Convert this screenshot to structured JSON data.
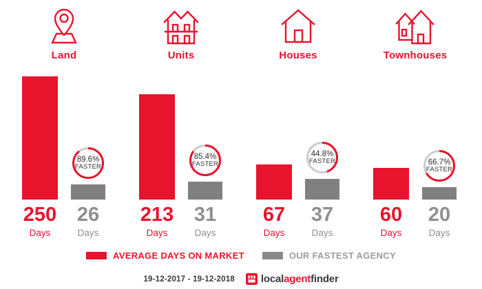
{
  "colors": {
    "accent_red": "#e8132d",
    "bar_gray": "#808080",
    "ring_gray": "#cccccc",
    "number_gray": "#8f8f8f",
    "legend_gray": "#9c9c9c",
    "footer_text": "#3a3a3a"
  },
  "chart_data": {
    "type": "bar",
    "categories": [
      "Land",
      "Units",
      "Houses",
      "Townhouses"
    ],
    "series": [
      {
        "name": "AVERAGE DAYS ON MARKET",
        "color": "#e8132d",
        "values": [
          250,
          213,
          67,
          60
        ]
      },
      {
        "name": "OUR FASTEST AGENCY",
        "color": "#808080",
        "values": [
          26,
          31,
          37,
          20
        ]
      }
    ],
    "badges_faster_pct": [
      89.6,
      85.4,
      44.8,
      66.7
    ],
    "value_unit": "Days",
    "badge_suffix": "FASTER",
    "legend_position": "bottom",
    "grid": false,
    "title": ""
  },
  "groups": [
    {
      "label": "Land",
      "icon": "map-pin-icon",
      "avg_days": "250",
      "fastest_days": "26",
      "faster_pct": 89.6,
      "badge_text": "89.6%"
    },
    {
      "label": "Units",
      "icon": "units-icon",
      "avg_days": "213",
      "fastest_days": "31",
      "faster_pct": 85.4,
      "badge_text": "85.4%"
    },
    {
      "label": "Houses",
      "icon": "house-icon",
      "avg_days": "67",
      "fastest_days": "37",
      "faster_pct": 44.8,
      "badge_text": "44.8%"
    },
    {
      "label": "Townhouses",
      "icon": "townhouses-icon",
      "avg_days": "60",
      "fastest_days": "20",
      "faster_pct": 66.7,
      "badge_text": "66.7%"
    }
  ],
  "days_label": "Days",
  "badge_suffix": "FASTER",
  "legend": {
    "items": [
      {
        "label": "AVERAGE DAYS ON MARKET",
        "color": "#e8132d"
      },
      {
        "label": "OUR FASTEST AGENCY",
        "color": "#808080"
      }
    ]
  },
  "footer": {
    "date_range": "19-12-2017 - 19-12-2018",
    "logo": {
      "part1": "local",
      "part2": "agent",
      "part3": "finder"
    }
  }
}
